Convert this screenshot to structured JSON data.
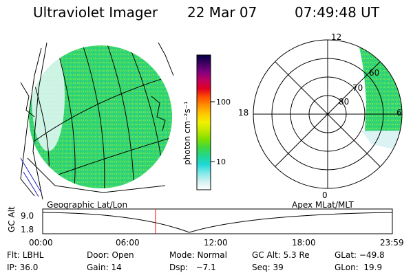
{
  "header": {
    "title": "Ultraviolet Imager",
    "date": "22 Mar 07",
    "time": "07:49:48 UT"
  },
  "colorbar": {
    "unit_label": "photon cm⁻²s⁻¹",
    "ticks": [
      "100",
      "10"
    ],
    "stops": [
      "#000044",
      "#400060",
      "#800080",
      "#c00060",
      "#e00020",
      "#ff5000",
      "#ff9000",
      "#ffc800",
      "#f0f000",
      "#c0e800",
      "#80e000",
      "#40d840",
      "#20d890",
      "#20d8d8",
      "#80e8e8",
      "#d0f0f0",
      "#ffffff"
    ]
  },
  "geo_panel": {
    "label": "Geographic Lat/Lon",
    "aurora_color": "#30d860"
  },
  "polar_panel": {
    "label": "Apex MLat/MLT",
    "mlt_labels": {
      "top": "12",
      "left": "18",
      "bottom": "0",
      "right": "6"
    },
    "lat_labels": [
      "60",
      "70",
      "80"
    ]
  },
  "altitude_strip": {
    "axis_title": "GC Alt",
    "y_ticks": [
      "9.0",
      "1.8"
    ],
    "x_ticks": [
      "00:00",
      "06:00",
      "12:00",
      "18:00",
      "23:59"
    ],
    "current_marker_color": "#ff0000"
  },
  "footer": {
    "rows": [
      [
        {
          "name": "filter",
          "text": "Flt: LBHL"
        },
        {
          "name": "door",
          "text": "Door: Open"
        },
        {
          "name": "mode",
          "text": "Mode: Normal"
        },
        {
          "name": "gc-alt",
          "text": "GC Alt: 5.3 Re"
        },
        {
          "name": "glat",
          "text": "GLat: −49.8"
        }
      ],
      [
        {
          "name": "ip",
          "text": "IP: 36.0"
        },
        {
          "name": "gain",
          "text": "Gain: 14"
        },
        {
          "name": "dsp",
          "text": "Dsp:   −7.1"
        },
        {
          "name": "seq",
          "text": "Seq: 39"
        },
        {
          "name": "glon",
          "text": "GLon:  19.9"
        }
      ]
    ]
  }
}
